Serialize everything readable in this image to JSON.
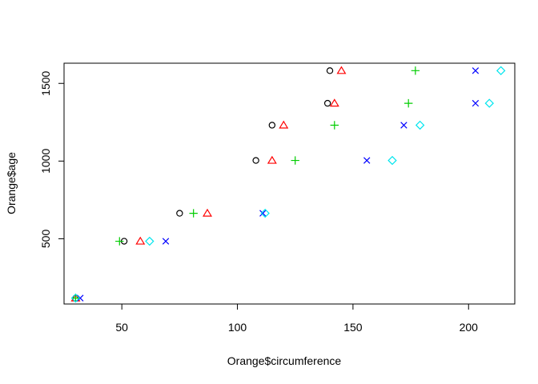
{
  "chart_data": {
    "type": "scatter",
    "title": "",
    "xlabel": "Orange$circumference",
    "ylabel": "Orange$age",
    "xlim": [
      25,
      220
    ],
    "ylim": [
      80,
      1630
    ],
    "x_ticks": [
      50,
      100,
      150,
      200
    ],
    "y_ticks": [
      500,
      1000,
      1500
    ],
    "grid": false,
    "legend": "none",
    "series": [
      {
        "marker": "circle",
        "color": "#000000",
        "points": [
          [
            30,
            118
          ],
          [
            51,
            484
          ],
          [
            75,
            664
          ],
          [
            108,
            1004
          ],
          [
            115,
            1231
          ],
          [
            139,
            1372
          ],
          [
            140,
            1582
          ]
        ]
      },
      {
        "marker": "triangle",
        "color": "#ff0000",
        "points": [
          [
            30,
            118
          ],
          [
            58,
            484
          ],
          [
            87,
            664
          ],
          [
            115,
            1004
          ],
          [
            120,
            1231
          ],
          [
            142,
            1372
          ],
          [
            145,
            1582
          ]
        ]
      },
      {
        "marker": "plus",
        "color": "#00cd00",
        "points": [
          [
            30,
            118
          ],
          [
            49,
            484
          ],
          [
            81,
            664
          ],
          [
            125,
            1004
          ],
          [
            142,
            1231
          ],
          [
            174,
            1372
          ],
          [
            177,
            1582
          ]
        ]
      },
      {
        "marker": "cross",
        "color": "#0000ff",
        "points": [
          [
            32,
            118
          ],
          [
            69,
            484
          ],
          [
            111,
            664
          ],
          [
            156,
            1004
          ],
          [
            172,
            1231
          ],
          [
            203,
            1372
          ],
          [
            203,
            1582
          ]
        ]
      },
      {
        "marker": "diamond",
        "color": "#00e5ee",
        "points": [
          [
            30,
            118
          ],
          [
            62,
            484
          ],
          [
            112,
            664
          ],
          [
            167,
            1004
          ],
          [
            179,
            1231
          ],
          [
            209,
            1372
          ],
          [
            214,
            1582
          ]
        ]
      }
    ]
  }
}
